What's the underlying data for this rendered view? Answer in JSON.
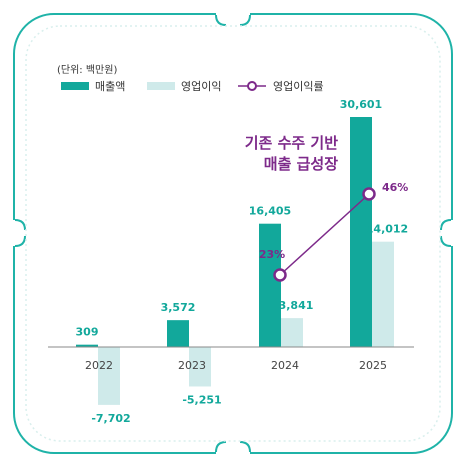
{
  "unit_label": "(단위: 백만원)",
  "legend": {
    "sales": "매출액",
    "op_profit": "영업이익",
    "op_margin": "영업이익률"
  },
  "annotation": {
    "line1": "기존 수주 기반",
    "line2": "매출 급성장"
  },
  "colors": {
    "sales": "#12a89b",
    "op_profit": "#cfeaea",
    "margin_line": "#7d2a8a",
    "frame_border": "#1fb3a8",
    "annotation": "#7d2a8a"
  },
  "chart_data": {
    "type": "bar",
    "categories": [
      "2022",
      "2023",
      "2024",
      "2025"
    ],
    "series": [
      {
        "name": "매출액",
        "values": [
          309,
          3572,
          16405,
          30601
        ],
        "labels": [
          "309",
          "3,572",
          "16,405",
          "30,601"
        ]
      },
      {
        "name": "영업이익",
        "values": [
          -7702,
          -5251,
          3841,
          14012
        ],
        "labels": [
          "-7,702",
          "-5,251",
          "3,841",
          "14,012"
        ]
      }
    ],
    "line_series": {
      "name": "영업이익률",
      "categories": [
        "2024",
        "2025"
      ],
      "values": [
        23,
        46
      ],
      "labels": [
        "23%",
        "46%"
      ]
    },
    "axis_baseline": 0,
    "grid": false,
    "legend_position": "top-left"
  }
}
